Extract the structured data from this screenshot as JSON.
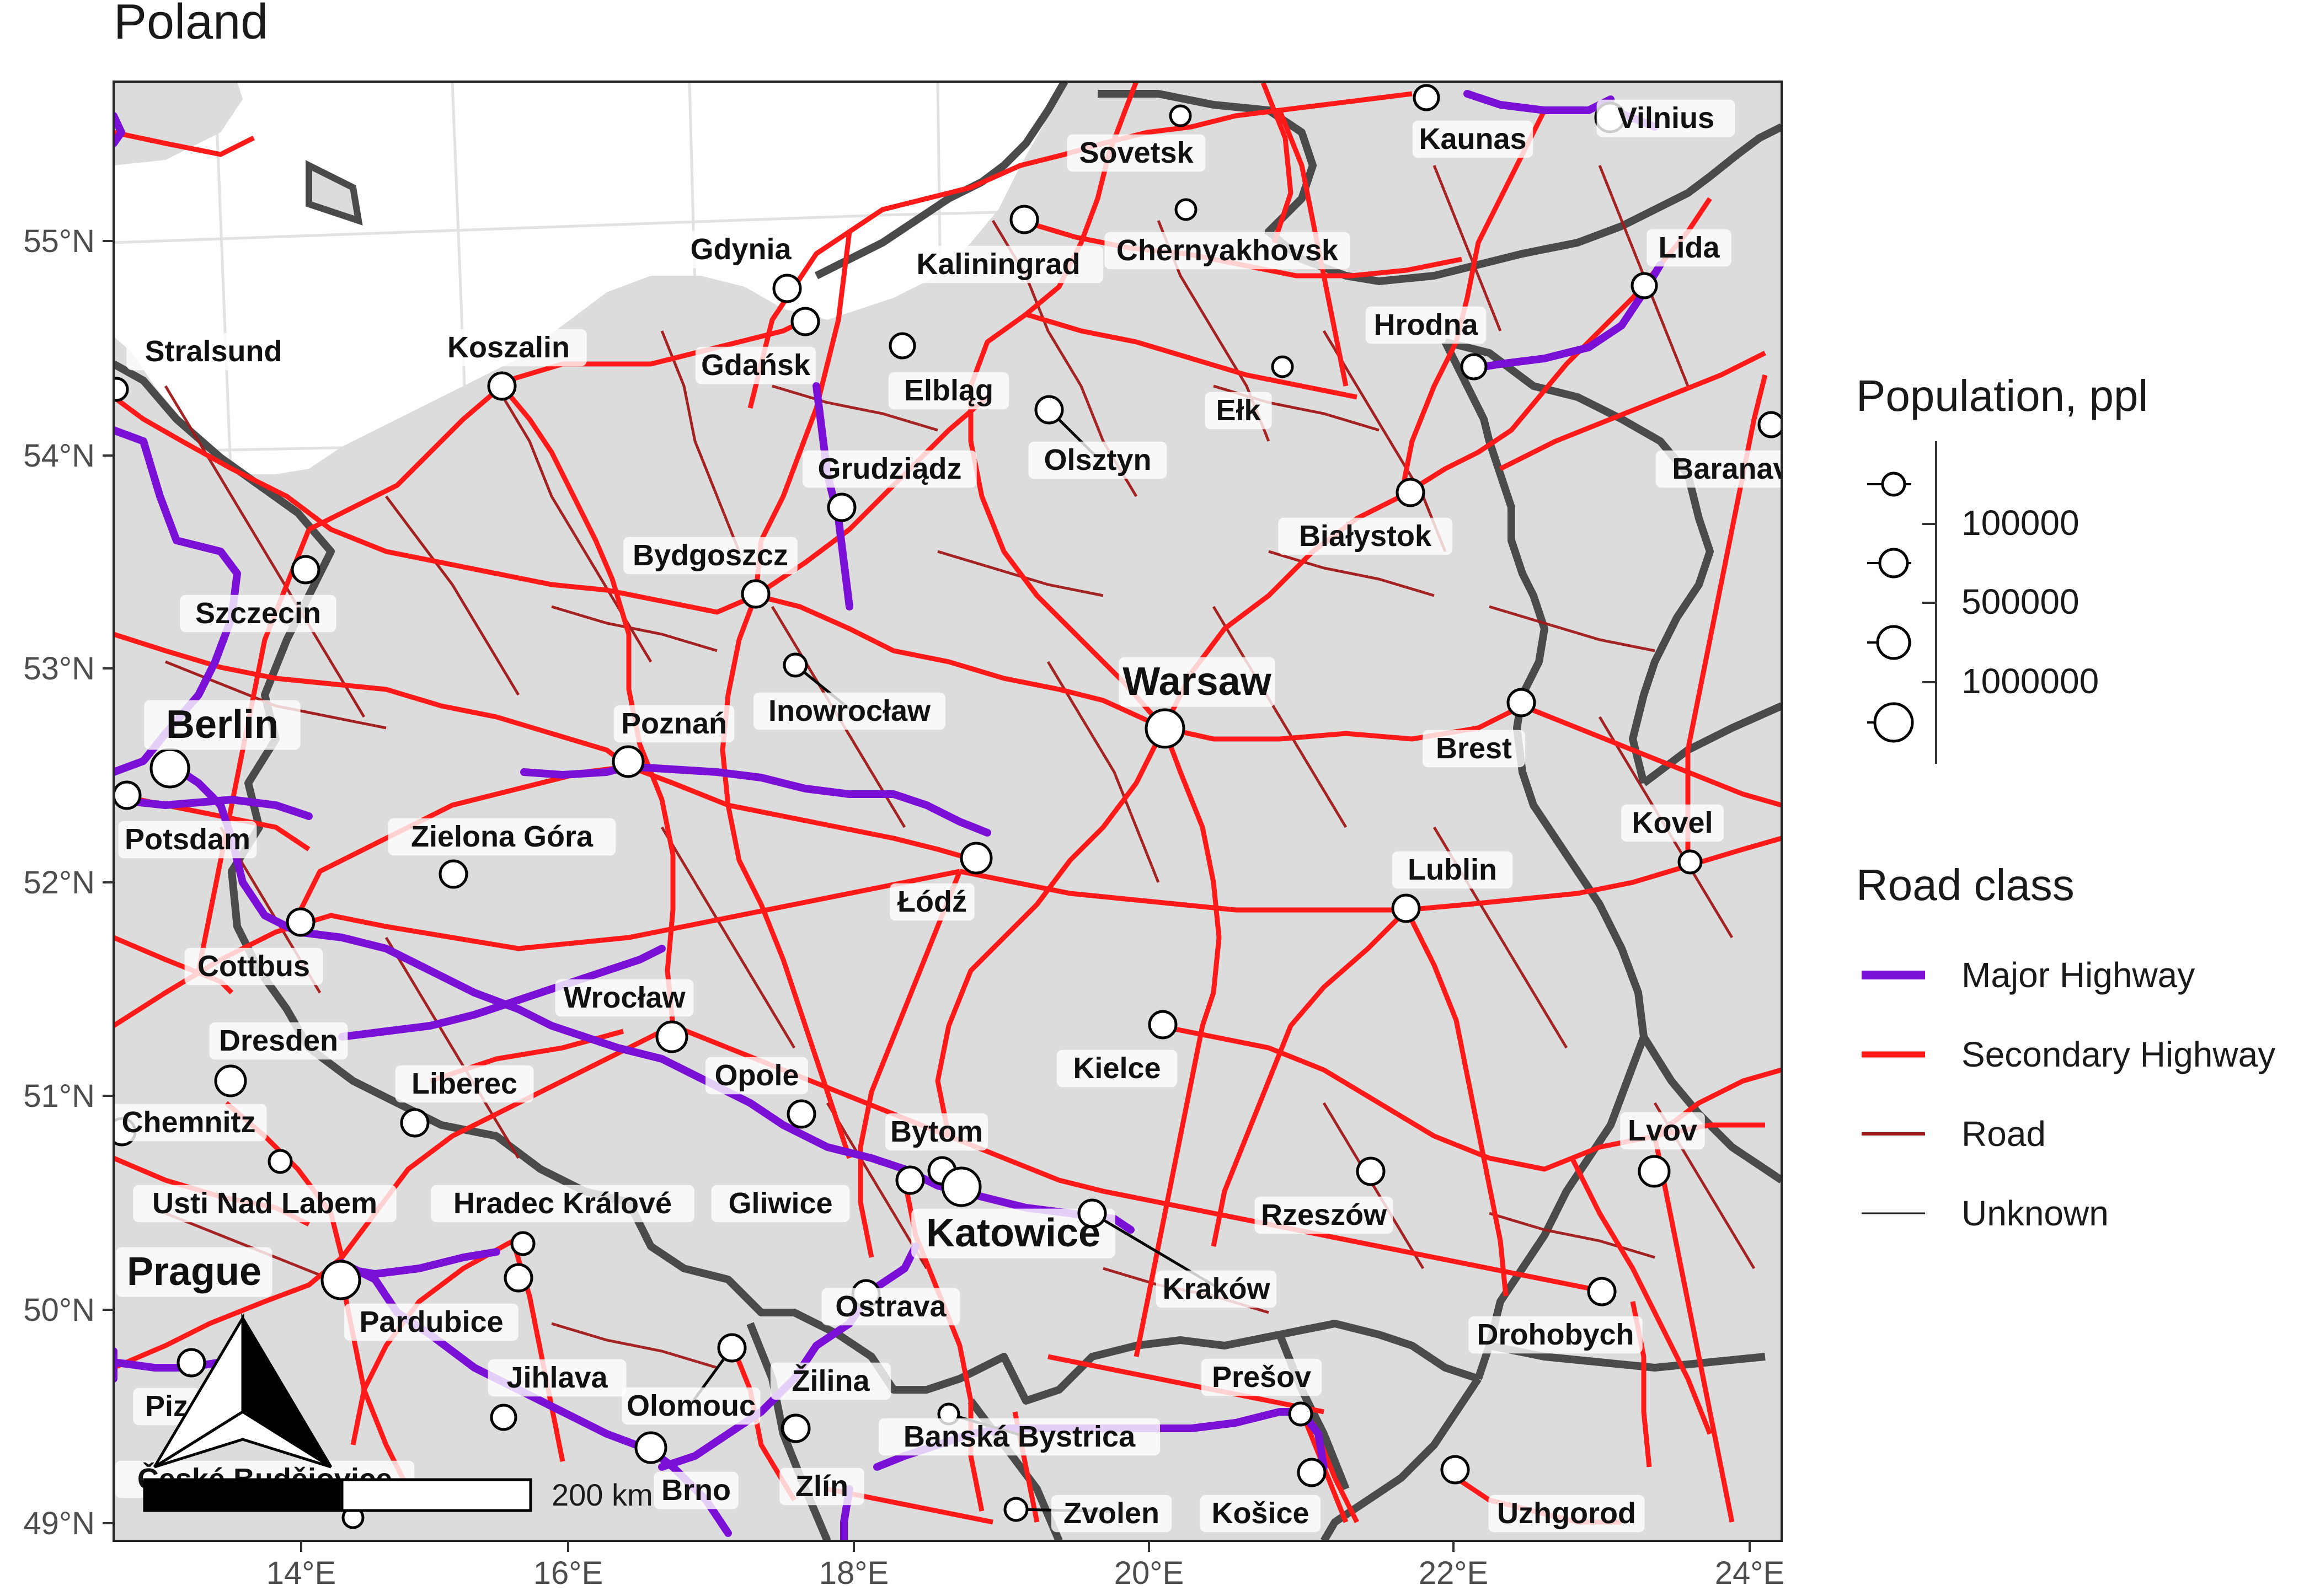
{
  "title": "Poland",
  "axes": {
    "lat_labels": [
      "55°N",
      "54°N",
      "53°N",
      "52°N",
      "51°N",
      "50°N",
      "49°N"
    ],
    "lon_labels": [
      "14°E",
      "16°E",
      "18°E",
      "20°E",
      "22°E",
      "24°E"
    ]
  },
  "legend": {
    "population": {
      "title": "Population, ppl",
      "labels": [
        "100000",
        "500000",
        "1000000"
      ]
    },
    "road_class": {
      "title": "Road class",
      "items": [
        {
          "label": "Major Highway",
          "color": "#7a0fd6"
        },
        {
          "label": "Secondary Highway",
          "color": "#ff1a1a"
        },
        {
          "label": "Road",
          "color": "#a01818"
        },
        {
          "label": "Unknown",
          "color": "#222222"
        }
      ]
    }
  },
  "scale_bar": {
    "label": "200 km"
  },
  "cities": [
    {
      "name": "Sovetsk"
    },
    {
      "name": "Kaunas"
    },
    {
      "name": "Vilnius"
    },
    {
      "name": "Chernyakhovsk"
    },
    {
      "name": "Kaliningrad"
    },
    {
      "name": "Gdynia"
    },
    {
      "name": "Lida"
    },
    {
      "name": "Gdańsk"
    },
    {
      "name": "Elbląg"
    },
    {
      "name": "Hrodna"
    },
    {
      "name": "Stralsund"
    },
    {
      "name": "Koszalin"
    },
    {
      "name": "Ełk"
    },
    {
      "name": "Olsztyn"
    },
    {
      "name": "Grudziądz"
    },
    {
      "name": "Baranavichy"
    },
    {
      "name": "Białystok"
    },
    {
      "name": "Szczecin"
    },
    {
      "name": "Bydgoszcz"
    },
    {
      "name": "Inowrocław"
    },
    {
      "name": "Warsaw"
    },
    {
      "name": "Berlin"
    },
    {
      "name": "Poznań"
    },
    {
      "name": "Brest"
    },
    {
      "name": "Kovel"
    },
    {
      "name": "Potsdam"
    },
    {
      "name": "Zielona Góra"
    },
    {
      "name": "Lublin"
    },
    {
      "name": "Łódź"
    },
    {
      "name": "Cottbus"
    },
    {
      "name": "Wrocław"
    },
    {
      "name": "Dresden"
    },
    {
      "name": "Kielce"
    },
    {
      "name": "Opole"
    },
    {
      "name": "Liberec"
    },
    {
      "name": "Chemnitz"
    },
    {
      "name": "Bytom"
    },
    {
      "name": "Lvov"
    },
    {
      "name": "Usti Nad Labem"
    },
    {
      "name": "Hradec Králové"
    },
    {
      "name": "Gliwice"
    },
    {
      "name": "Rzeszów"
    },
    {
      "name": "Katowice"
    },
    {
      "name": "Prague"
    },
    {
      "name": "Kraków"
    },
    {
      "name": "Pardubice"
    },
    {
      "name": "Ostrava"
    },
    {
      "name": "Drohobych"
    },
    {
      "name": "Jihlava"
    },
    {
      "name": "Žilina"
    },
    {
      "name": "Prešov"
    },
    {
      "name": "Olomouc"
    },
    {
      "name": "Banská Bystrica"
    },
    {
      "name": "Brno"
    },
    {
      "name": "Zlín"
    },
    {
      "name": "Zvolen"
    },
    {
      "name": "Košice"
    },
    {
      "name": "Uzhgorod"
    },
    {
      "name": "Piz"
    },
    {
      "name": "České Budějovice"
    }
  ]
}
